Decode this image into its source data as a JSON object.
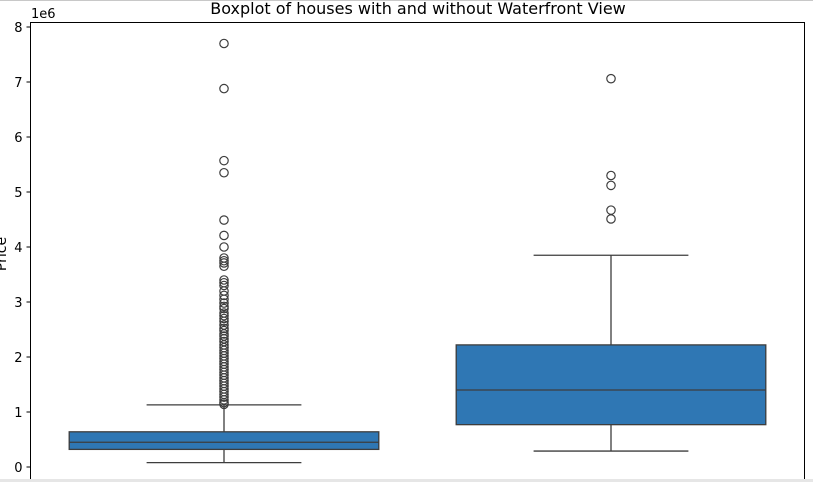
{
  "chart_data": {
    "type": "boxplot",
    "title": "Boxplot of houses with and without Waterfront View",
    "ylabel": "Price",
    "xlabel": "",
    "y_offset_label": "1e6",
    "ylim": [
      -0.1,
      8.1
    ],
    "yticks": [
      0,
      1,
      2,
      3,
      4,
      5,
      6,
      7,
      8
    ],
    "grid": false,
    "box_color": "#2f77b4",
    "line_color": "#3d3d3d",
    "groups": [
      {
        "whisker_low": 0.08,
        "q1": 0.32,
        "median": 0.45,
        "q3": 0.64,
        "whisker_high": 1.13,
        "outliers": [
          7.7,
          6.88,
          5.57,
          5.35,
          4.49,
          4.21,
          4.0,
          3.8,
          3.75,
          3.71,
          3.65,
          3.4,
          3.35,
          3.3,
          3.2,
          3.12,
          3.05,
          2.98,
          2.92,
          2.88,
          2.8,
          2.75,
          2.7,
          2.65,
          2.58,
          2.52,
          2.48,
          2.42,
          2.38,
          2.33,
          2.28,
          2.22,
          2.17,
          2.12,
          2.07,
          2.02,
          1.97,
          1.92,
          1.87,
          1.82,
          1.77,
          1.72,
          1.67,
          1.62,
          1.57,
          1.52,
          1.47,
          1.42,
          1.37,
          1.32,
          1.27,
          1.22,
          1.17,
          1.14
        ]
      },
      {
        "whisker_low": 0.29,
        "q1": 0.77,
        "median": 1.4,
        "q3": 2.22,
        "whisker_high": 3.85,
        "outliers": [
          7.06,
          5.3,
          5.12,
          4.67,
          4.51
        ]
      }
    ]
  }
}
